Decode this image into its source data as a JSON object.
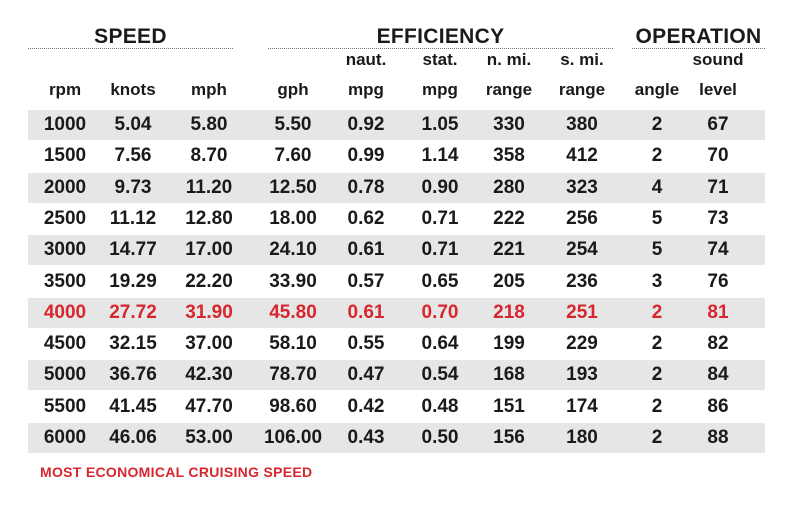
{
  "chart_data": {
    "type": "table",
    "groups": [
      {
        "label": "SPEED",
        "key": "speed"
      },
      {
        "label": "EFFICIENCY",
        "key": "efficiency"
      },
      {
        "label": "OPERATION",
        "key": "operation"
      }
    ],
    "columns": [
      {
        "key": "rpm",
        "top": "",
        "bottom": "rpm"
      },
      {
        "key": "knots",
        "top": "",
        "bottom": "knots"
      },
      {
        "key": "mph",
        "top": "",
        "bottom": "mph"
      },
      {
        "key": "gph",
        "top": "",
        "bottom": "gph"
      },
      {
        "key": "naut_mpg",
        "top": "naut.",
        "bottom": "mpg"
      },
      {
        "key": "stat_mpg",
        "top": "stat.",
        "bottom": "mpg"
      },
      {
        "key": "n_range",
        "top": "n. mi.",
        "bottom": "range"
      },
      {
        "key": "s_range",
        "top": "s. mi.",
        "bottom": "range"
      },
      {
        "key": "angle",
        "top": "",
        "bottom": "angle"
      },
      {
        "key": "sound",
        "top": "sound",
        "bottom": "level"
      }
    ],
    "rows": [
      [
        "1000",
        "5.04",
        "5.80",
        "5.50",
        "0.92",
        "1.05",
        "330",
        "380",
        "2",
        "67"
      ],
      [
        "1500",
        "7.56",
        "8.70",
        "7.60",
        "0.99",
        "1.14",
        "358",
        "412",
        "2",
        "70"
      ],
      [
        "2000",
        "9.73",
        "11.20",
        "12.50",
        "0.78",
        "0.90",
        "280",
        "323",
        "4",
        "71"
      ],
      [
        "2500",
        "11.12",
        "12.80",
        "18.00",
        "0.62",
        "0.71",
        "222",
        "256",
        "5",
        "73"
      ],
      [
        "3000",
        "14.77",
        "17.00",
        "24.10",
        "0.61",
        "0.71",
        "221",
        "254",
        "5",
        "74"
      ],
      [
        "3500",
        "19.29",
        "22.20",
        "33.90",
        "0.57",
        "0.65",
        "205",
        "236",
        "3",
        "76"
      ],
      [
        "4000",
        "27.72",
        "31.90",
        "45.80",
        "0.61",
        "0.70",
        "218",
        "251",
        "2",
        "81"
      ],
      [
        "4500",
        "32.15",
        "37.00",
        "58.10",
        "0.55",
        "0.64",
        "199",
        "229",
        "2",
        "82"
      ],
      [
        "5000",
        "36.76",
        "42.30",
        "78.70",
        "0.47",
        "0.54",
        "168",
        "193",
        "2",
        "84"
      ],
      [
        "5500",
        "41.45",
        "47.70",
        "98.60",
        "0.42",
        "0.48",
        "151",
        "174",
        "2",
        "86"
      ],
      [
        "6000",
        "46.06",
        "53.00",
        "106.00",
        "0.43",
        "0.50",
        "156",
        "180",
        "2",
        "88"
      ]
    ],
    "highlight_row_index": 6,
    "highlight_color": "#d7262d",
    "footnote": "MOST ECONOMICAL CRUISING SPEED"
  }
}
